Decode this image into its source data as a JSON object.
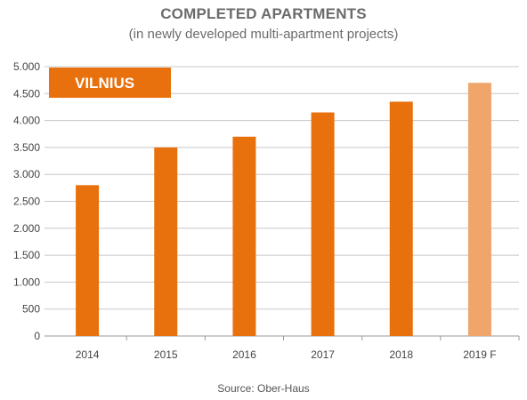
{
  "chart_data": {
    "type": "bar",
    "title": "COMPLETED APARTMENTS",
    "subtitle": "(in newly developed multi-apartment projects)",
    "badge": "VILNIUS",
    "source": "Source: Ober-Haus",
    "categories": [
      "2014",
      "2015",
      "2016",
      "2017",
      "2018",
      "2019 F"
    ],
    "values": [
      2800,
      3500,
      3700,
      4150,
      4350,
      4700
    ],
    "forecast": [
      false,
      false,
      false,
      false,
      false,
      true
    ],
    "ylim": [
      0,
      5000
    ],
    "yticks": [
      0,
      500,
      1000,
      1500,
      2000,
      2500,
      3000,
      3500,
      4000,
      4500,
      5000
    ],
    "ytick_labels": [
      "0",
      "500",
      "1.000",
      "1.500",
      "2.000",
      "2.500",
      "3.000",
      "3.500",
      "4.000",
      "4.500",
      "5.000"
    ],
    "xlabel": "",
    "ylabel": "",
    "grid": true,
    "colors": {
      "bar": "#E8700D",
      "forecast": "#F0A56A",
      "grid": "#c8c8c8",
      "axis": "#999999",
      "badge": "#E8700D"
    }
  }
}
